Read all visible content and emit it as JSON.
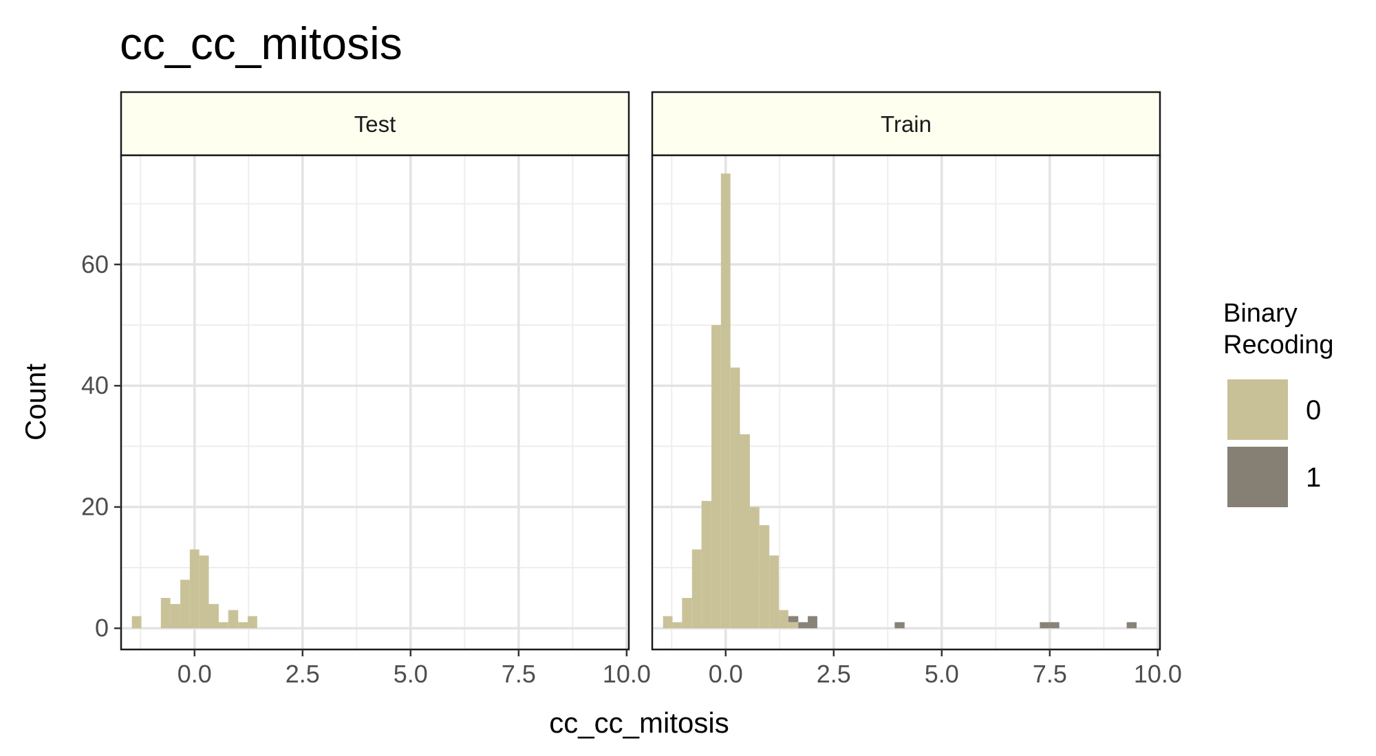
{
  "chart_data": {
    "type": "bar",
    "title": "cc_cc_mitosis",
    "xlabel": "cc_cc_mitosis",
    "ylabel": "Count",
    "xlim": [
      -1.7,
      10.05
    ],
    "ylim": [
      -3.5,
      78
    ],
    "x_ticks": [
      0.0,
      2.5,
      5.0,
      7.5,
      10.0
    ],
    "x_tick_labels": [
      "0.0",
      "2.5",
      "5.0",
      "7.5",
      "10.0"
    ],
    "y_ticks": [
      0,
      20,
      40,
      60
    ],
    "y_tick_labels": [
      "0",
      "20",
      "40",
      "60"
    ],
    "bin_width": 0.2237,
    "grid": true,
    "legend": {
      "title": "Binary\nRecoding",
      "placement": "right",
      "entries": [
        {
          "label": "0",
          "color": "#c8c197"
        },
        {
          "label": "1",
          "color": "#868074"
        }
      ]
    },
    "facets": [
      {
        "name": "Test",
        "series": [
          {
            "name": "0",
            "color": "#c8c197",
            "bins": [
              {
                "x0": -1.45,
                "x1": -1.23,
                "count": 2
              },
              {
                "x0": -0.78,
                "x1": -0.56,
                "count": 5
              },
              {
                "x0": -0.56,
                "x1": -0.33,
                "count": 4
              },
              {
                "x0": -0.33,
                "x1": -0.11,
                "count": 8
              },
              {
                "x0": -0.11,
                "x1": 0.11,
                "count": 13
              },
              {
                "x0": 0.11,
                "x1": 0.33,
                "count": 12
              },
              {
                "x0": 0.33,
                "x1": 0.56,
                "count": 4
              },
              {
                "x0": 0.56,
                "x1": 0.78,
                "count": 1
              },
              {
                "x0": 0.78,
                "x1": 1.01,
                "count": 3
              },
              {
                "x0": 1.01,
                "x1": 1.23,
                "count": 1
              },
              {
                "x0": 1.23,
                "x1": 1.45,
                "count": 2
              }
            ]
          }
        ]
      },
      {
        "name": "Train",
        "series": [
          {
            "name": "0",
            "color": "#c8c197",
            "bins": [
              {
                "x0": -1.45,
                "x1": -1.23,
                "count": 2
              },
              {
                "x0": -1.23,
                "x1": -1.01,
                "count": 1
              },
              {
                "x0": -1.01,
                "x1": -0.78,
                "count": 5
              },
              {
                "x0": -0.78,
                "x1": -0.56,
                "count": 13
              },
              {
                "x0": -0.56,
                "x1": -0.33,
                "count": 21
              },
              {
                "x0": -0.33,
                "x1": -0.11,
                "count": 50
              },
              {
                "x0": -0.11,
                "x1": 0.11,
                "count": 75
              },
              {
                "x0": 0.11,
                "x1": 0.33,
                "count": 43
              },
              {
                "x0": 0.33,
                "x1": 0.56,
                "count": 32
              },
              {
                "x0": 0.56,
                "x1": 0.78,
                "count": 20
              },
              {
                "x0": 0.78,
                "x1": 1.01,
                "count": 17
              },
              {
                "x0": 1.01,
                "x1": 1.23,
                "count": 12
              },
              {
                "x0": 1.23,
                "x1": 1.45,
                "count": 3
              },
              {
                "x0": 1.45,
                "x1": 1.68,
                "count": 1
              }
            ]
          },
          {
            "name": "1",
            "color": "#868074",
            "bins": [
              {
                "x0": 1.45,
                "x1": 1.68,
                "count": 1
              },
              {
                "x0": 1.68,
                "x1": 1.9,
                "count": 1
              },
              {
                "x0": 1.9,
                "x1": 2.12,
                "count": 2
              },
              {
                "x0": 3.91,
                "x1": 4.14,
                "count": 1
              },
              {
                "x0": 7.27,
                "x1": 7.49,
                "count": 1
              },
              {
                "x0": 7.49,
                "x1": 7.72,
                "count": 1
              },
              {
                "x0": 9.28,
                "x1": 9.51,
                "count": 1
              }
            ]
          }
        ]
      }
    ]
  }
}
